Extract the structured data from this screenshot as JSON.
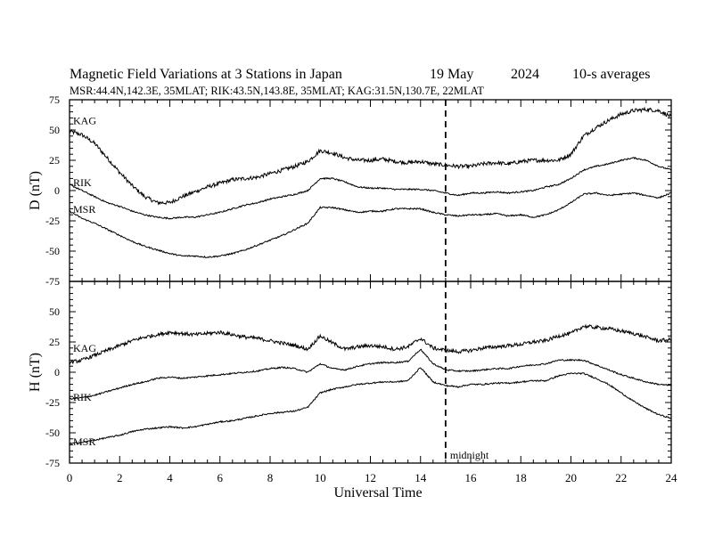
{
  "header": {
    "title": "Magnetic Field Variations at 3 Stations in Japan",
    "date": "19 May",
    "year": "2024",
    "averaging": "10-s averages",
    "stations_line": "MSR:44.4N,142.3E, 35MLAT;  RIK:43.5N,143.8E, 35MLAT;  KAG:31.5N,130.7E, 22MLAT"
  },
  "chart_data": [
    {
      "type": "line",
      "panel": "top",
      "ylabel": "D (nT)",
      "ylim": [
        -75,
        75
      ],
      "yticks": [
        -75,
        -50,
        -25,
        0,
        25,
        50,
        75
      ],
      "xlim": [
        0,
        24
      ],
      "xticks": [
        0,
        2,
        4,
        6,
        8,
        10,
        12,
        14,
        16,
        18,
        20,
        22,
        24
      ],
      "grid": false,
      "series": [
        {
          "name": "KAG",
          "noise": 1.6,
          "x": [
            0,
            0.5,
            1,
            1.5,
            2,
            2.5,
            3,
            3.5,
            4,
            4.5,
            5,
            5.5,
            6,
            6.5,
            7,
            7.5,
            8,
            8.5,
            9,
            9.5,
            10,
            10.5,
            11,
            11.5,
            12,
            12.5,
            13,
            13.5,
            14,
            14.5,
            15,
            15.5,
            16,
            16.5,
            17,
            17.5,
            18,
            18.5,
            19,
            19.5,
            20,
            20.5,
            21,
            21.5,
            22,
            22.5,
            23,
            23.5,
            24
          ],
          "y": [
            49,
            46,
            39,
            27,
            15,
            4,
            -5,
            -10,
            -10,
            -5,
            -1,
            3,
            6,
            9,
            10,
            11,
            14,
            17,
            20,
            24,
            33,
            31,
            27,
            25,
            25,
            26,
            24,
            23,
            24,
            22,
            21,
            20,
            20,
            22,
            23,
            22,
            24,
            25,
            25,
            25,
            30,
            45,
            52,
            58,
            63,
            66,
            67,
            66,
            61
          ]
        },
        {
          "name": "RIK",
          "noise": 0.6,
          "x": [
            0,
            0.5,
            1,
            1.5,
            2,
            2.5,
            3,
            3.5,
            4,
            4.5,
            5,
            5.5,
            6,
            6.5,
            7,
            7.5,
            8,
            8.5,
            9,
            9.5,
            10,
            10.5,
            11,
            11.5,
            12,
            12.5,
            13,
            13.5,
            14,
            14.5,
            15,
            15.5,
            16,
            16.5,
            17,
            17.5,
            18,
            18.5,
            19,
            19.5,
            20,
            20.5,
            21,
            21.5,
            22,
            22.5,
            23,
            23.5,
            24
          ],
          "y": [
            5,
            0,
            -5,
            -10,
            -13,
            -17,
            -20,
            -22,
            -23,
            -22,
            -22,
            -20,
            -18,
            -15,
            -12,
            -10,
            -7,
            -5,
            -3,
            0,
            10,
            10,
            7,
            3,
            2,
            2,
            1,
            1,
            1,
            0,
            -2,
            -4,
            -2,
            -2,
            -1,
            -2,
            -1,
            0,
            3,
            5,
            10,
            17,
            20,
            22,
            25,
            27,
            25,
            20,
            17
          ]
        },
        {
          "name": "MSR",
          "noise": 0.6,
          "x": [
            0,
            0.5,
            1,
            1.5,
            2,
            2.5,
            3,
            3.5,
            4,
            4.5,
            5,
            5.5,
            6,
            6.5,
            7,
            7.5,
            8,
            8.5,
            9,
            9.5,
            10,
            10.5,
            11,
            11.5,
            12,
            12.5,
            13,
            13.5,
            14,
            14.5,
            15,
            15.5,
            16,
            16.5,
            17,
            17.5,
            18,
            18.5,
            19,
            19.5,
            20,
            20.5,
            21,
            21.5,
            22,
            22.5,
            23,
            23.5,
            24
          ],
          "y": [
            -17,
            -23,
            -27,
            -32,
            -37,
            -42,
            -46,
            -49,
            -52,
            -54,
            -54,
            -55,
            -54,
            -52,
            -49,
            -45,
            -41,
            -37,
            -32,
            -27,
            -14,
            -14,
            -16,
            -18,
            -17,
            -17,
            -15,
            -15,
            -15,
            -18,
            -20,
            -21,
            -20,
            -20,
            -19,
            -21,
            -20,
            -22,
            -20,
            -16,
            -10,
            -3,
            -2,
            -4,
            -3,
            -2,
            -4,
            -6,
            -2
          ]
        }
      ],
      "annotations": []
    },
    {
      "type": "line",
      "panel": "bottom",
      "ylabel": "H (nT)",
      "xlabel": "Universal Time",
      "ylim": [
        -75,
        75
      ],
      "yticks": [
        -75,
        -50,
        -25,
        0,
        25,
        50,
        75
      ],
      "xlim": [
        0,
        24
      ],
      "xticks": [
        0,
        2,
        4,
        6,
        8,
        10,
        12,
        14,
        16,
        18,
        20,
        22,
        24
      ],
      "grid": false,
      "series": [
        {
          "name": "KAG",
          "noise": 1.5,
          "x": [
            0,
            0.5,
            1,
            1.5,
            2,
            2.5,
            3,
            3.5,
            4,
            4.5,
            5,
            5.5,
            6,
            6.5,
            7,
            7.5,
            8,
            8.5,
            9,
            9.5,
            10,
            10.5,
            11,
            11.5,
            12,
            12.5,
            13,
            13.5,
            14,
            14.5,
            15,
            15.5,
            16,
            16.5,
            17,
            17.5,
            18,
            18.5,
            19,
            19.5,
            20,
            20.5,
            21,
            21.5,
            22,
            22.5,
            23,
            23.5,
            24
          ],
          "y": [
            8,
            10,
            14,
            18,
            22,
            26,
            29,
            31,
            33,
            32,
            31,
            32,
            33,
            31,
            29,
            28,
            26,
            24,
            22,
            19,
            30,
            24,
            19,
            21,
            22,
            21,
            19,
            21,
            28,
            20,
            18,
            17,
            18,
            20,
            21,
            22,
            23,
            25,
            26,
            30,
            32,
            38,
            37,
            36,
            34,
            32,
            29,
            26,
            27
          ]
        },
        {
          "name": "RIK",
          "noise": 0.6,
          "x": [
            0,
            0.5,
            1,
            1.5,
            2,
            2.5,
            3,
            3.5,
            4,
            4.5,
            5,
            5.5,
            6,
            6.5,
            7,
            7.5,
            8,
            8.5,
            9,
            9.5,
            10,
            10.5,
            11,
            11.5,
            12,
            12.5,
            13,
            13.5,
            14,
            14.5,
            15,
            15.5,
            16,
            16.5,
            17,
            17.5,
            18,
            18.5,
            19,
            19.5,
            20,
            20.5,
            21,
            21.5,
            22,
            22.5,
            23,
            23.5,
            24
          ],
          "y": [
            -22,
            -21,
            -19,
            -16,
            -13,
            -10,
            -8,
            -5,
            -4,
            -5,
            -4,
            -3,
            -2,
            -1,
            0,
            1,
            3,
            4,
            3,
            0,
            7,
            3,
            2,
            5,
            7,
            8,
            8,
            9,
            19,
            7,
            2,
            1,
            1,
            2,
            3,
            3,
            5,
            6,
            7,
            10,
            10,
            10,
            6,
            2,
            -2,
            -5,
            -8,
            -10,
            -11
          ]
        },
        {
          "name": "MSR",
          "noise": 0.6,
          "x": [
            0,
            0.5,
            1,
            1.5,
            2,
            2.5,
            3,
            3.5,
            4,
            4.5,
            5,
            5.5,
            6,
            6.5,
            7,
            7.5,
            8,
            8.5,
            9,
            9.5,
            10,
            10.5,
            11,
            11.5,
            12,
            12.5,
            13,
            13.5,
            14,
            14.5,
            15,
            15.5,
            16,
            16.5,
            17,
            17.5,
            18,
            18.5,
            19,
            19.5,
            20,
            20.5,
            21,
            21.5,
            22,
            22.5,
            23,
            23.5,
            24
          ],
          "y": [
            -59,
            -58,
            -56,
            -54,
            -52,
            -49,
            -47,
            -46,
            -45,
            -46,
            -45,
            -43,
            -41,
            -40,
            -38,
            -36,
            -34,
            -33,
            -32,
            -29,
            -17,
            -14,
            -12,
            -10,
            -9,
            -8,
            -8,
            -7,
            4,
            -8,
            -11,
            -12,
            -10,
            -10,
            -9,
            -9,
            -8,
            -7,
            -7,
            -3,
            -1,
            -1,
            -5,
            -10,
            -17,
            -24,
            -30,
            -35,
            -38
          ]
        }
      ],
      "annotations": [
        {
          "text": "midnight",
          "x": 15
        }
      ]
    }
  ]
}
